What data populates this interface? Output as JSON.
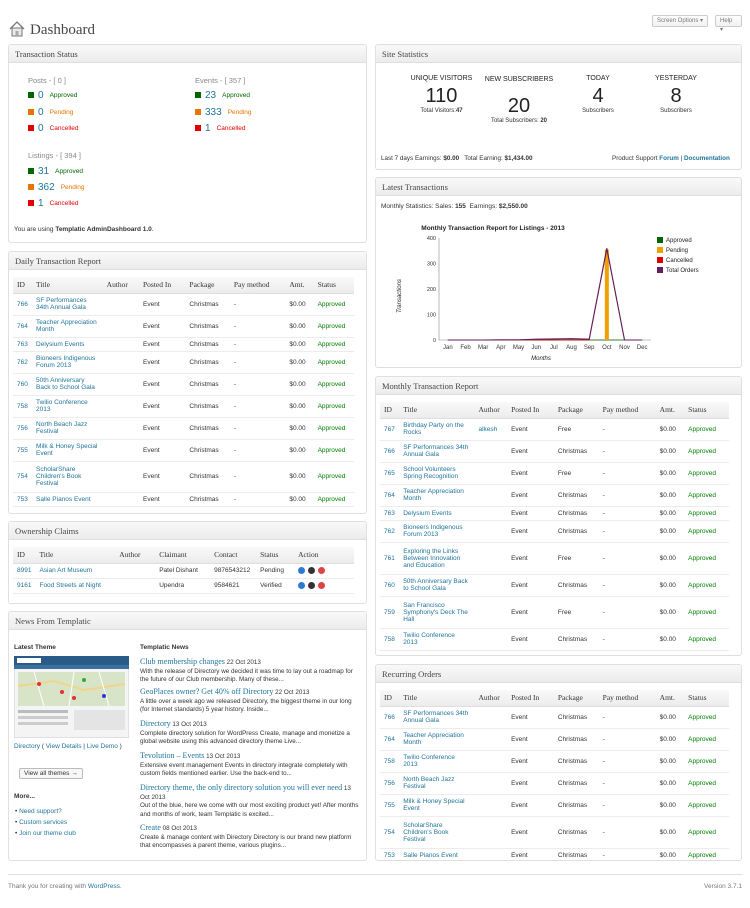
{
  "header": {
    "title": "Dashboard",
    "screen_options": "Screen Options",
    "help": "Help"
  },
  "transaction_status": {
    "title": "Transaction Status",
    "posts": {
      "label": "Posts - [ 0 ]",
      "approved": "0",
      "pending": "0",
      "cancelled": "0"
    },
    "events": {
      "label": "Events - [ 357 ]",
      "approved": "23",
      "pending": "333",
      "cancelled": "1"
    },
    "listings": {
      "label": "Listings - [ 394 ]",
      "approved": "31",
      "pending": "362",
      "cancelled": "1"
    },
    "labels": {
      "approved": "Approved",
      "pending": "Pending",
      "cancelled": "Cancelled"
    },
    "colors": {
      "approved": "#006600",
      "pending": "#e87400",
      "cancelled": "#e00000"
    },
    "using_prefix": "You are using ",
    "using_name": "Templatic AdminDashboard 1.0",
    "using_suffix": "."
  },
  "site_statistics": {
    "title": "Site Statistics",
    "cols": [
      {
        "label": "UNIQUE VISITORS",
        "value": "110",
        "sub_label": "Total Visitors:",
        "sub_value": "47"
      },
      {
        "label": "NEW SUBSCRIBERS",
        "value": "20",
        "sub_label": "Total Subscribers:",
        "sub_value": "20"
      },
      {
        "label": "TODAY",
        "value": "4",
        "sub_label": "Subscribers",
        "sub_value": ""
      },
      {
        "label": "YESTERDAY",
        "value": "8",
        "sub_label": "Subscribers",
        "sub_value": ""
      }
    ],
    "last7_label": "Last 7 days Earnings:",
    "last7_value": "$0.00",
    "total_label": "Total Earning:",
    "total_value": "$1,434.00",
    "support_label": "Product Support",
    "forum": "Forum",
    "sep": "|",
    "documentation": "Documentation"
  },
  "latest_transactions": {
    "title": "Latest Transactions",
    "monthly_stats_label": "Monthly Statistics: Sales:",
    "sales": "155",
    "earnings_label": "Earnings:",
    "earnings": "$2,550.00"
  },
  "chart_data": {
    "type": "line",
    "title": "Monthly Transaction Report for Listings - 2013",
    "xlabel": "Months",
    "ylabel": "Transactions",
    "categories": [
      "Jan",
      "Feb",
      "Mar",
      "Apr",
      "May",
      "Jun",
      "Jul",
      "Aug",
      "Sep",
      "Oct",
      "Nov",
      "Dec"
    ],
    "ylim": [
      0,
      400
    ],
    "yticks": [
      "0",
      "100",
      "200",
      "300",
      "400"
    ],
    "series": [
      {
        "name": "Approved",
        "color": "#006600",
        "values": [
          0,
          0,
          0,
          0,
          0,
          0,
          0,
          0,
          0,
          0,
          0,
          0
        ]
      },
      {
        "name": "Pending",
        "color": "#f0a000",
        "values": [
          0,
          0,
          0,
          0,
          0,
          0,
          0,
          0,
          0,
          355,
          0,
          0
        ]
      },
      {
        "name": "Cancelled",
        "color": "#dd0000",
        "values": [
          0,
          0,
          0,
          0,
          0,
          0,
          0,
          0,
          0,
          355,
          0,
          0
        ]
      },
      {
        "name": "Total Orders",
        "color": "#602060",
        "values": [
          0,
          0,
          0,
          1,
          1,
          3,
          4,
          5,
          3,
          360,
          0,
          0
        ]
      }
    ],
    "legend": "right"
  },
  "daily_report": {
    "title": "Daily Transaction Report",
    "headers": [
      "ID",
      "Title",
      "Author",
      "Posted In",
      "Package",
      "Pay method",
      "Amt.",
      "Status"
    ],
    "rows": [
      [
        "766",
        "SF Performances 34th Annual Gala",
        "",
        "Event",
        "Christmas",
        "-",
        "$0.00",
        "Approved"
      ],
      [
        "764",
        "Teacher Appreciation Month",
        "",
        "Event",
        "Christmas",
        "-",
        "$0.00",
        "Approved"
      ],
      [
        "763",
        "Delysium Events",
        "",
        "Event",
        "Christmas",
        "-",
        "$0.00",
        "Approved"
      ],
      [
        "762",
        "Bioneers Indigenous Forum 2013",
        "",
        "Event",
        "Christmas",
        "-",
        "$0.00",
        "Approved"
      ],
      [
        "760",
        "50th Anniversary Back to School Gala",
        "",
        "Event",
        "Christmas",
        "-",
        "$0.00",
        "Approved"
      ],
      [
        "758",
        "Twilio Conference 2013",
        "",
        "Event",
        "Christmas",
        "-",
        "$0.00",
        "Approved"
      ],
      [
        "756",
        "North Beach Jazz Festival",
        "",
        "Event",
        "Christmas",
        "-",
        "$0.00",
        "Approved"
      ],
      [
        "755",
        "Milk & Honey Special Event",
        "",
        "Event",
        "Christmas",
        "-",
        "$0.00",
        "Approved"
      ],
      [
        "754",
        "ScholarShare Children's Book Festival",
        "",
        "Event",
        "Christmas",
        "-",
        "$0.00",
        "Approved"
      ],
      [
        "753",
        "Salle Pianos Event",
        "",
        "Event",
        "Christmas",
        "-",
        "$0.00",
        "Approved"
      ]
    ]
  },
  "ownership": {
    "title": "Ownership Claims",
    "headers": [
      "ID",
      "Title",
      "Author",
      "Claimant",
      "Contact",
      "Status",
      "Action"
    ],
    "rows": [
      [
        "8991",
        "Asian Art Museum",
        "",
        "Patel Dishant",
        "9876543212",
        "Pending"
      ],
      [
        "9161",
        "Food Streets at Night",
        "",
        "Upendra",
        "9584621",
        "Verified"
      ]
    ]
  },
  "news": {
    "title": "News From Templatic",
    "latest_theme": "Latest Theme",
    "theme_name": "Directory",
    "view_details": "View Details",
    "live_demo": "Live Demo",
    "view_all": "View all themes →",
    "more": "More...",
    "more_links": [
      "Need support?",
      "Custom services",
      "Join our theme club"
    ],
    "templatic_news": "Templatic News",
    "items": [
      {
        "title": "Club membership changes",
        "date": "22 Oct 2013",
        "text": "With the release of Directory we decided it was time to lay out a roadmap for the future of our Club membership. Many of these..."
      },
      {
        "title": "GeoPlaces owner? Get 40% off Directory",
        "date": "22 Oct 2013",
        "text": "A little over a week ago we released Directory, the biggest theme in our long (for Internet standards) 5 year history. Inside..."
      },
      {
        "title": "Directory",
        "date": "13 Oct 2013",
        "text": "Complete directory solution for WordPress Create, manage and monetize a global website using this advanced directory theme Live..."
      },
      {
        "title": "Tevolution – Events",
        "date": "13 Oct 2013",
        "text": "Extensive event management Events in directory integrate completely with custom fields mentioned earlier. Use the back-end to..."
      },
      {
        "title": "Directory theme, the only directory solution you will ever need",
        "date": "13 Oct 2013",
        "text": "Out of the blue, here we come with our most exciting product yet! After months and months of work, team Templatic is excited..."
      },
      {
        "title": "Create",
        "date": "08 Oct 2013",
        "text": "Create & manage content with Directory Directory is our brand new platform that encompasses a parent theme, various plugins..."
      }
    ]
  },
  "monthly_report": {
    "title": "Monthly Transaction Report",
    "headers": [
      "ID",
      "Title",
      "Author",
      "Posted In",
      "Package",
      "Pay method",
      "Amt.",
      "Status"
    ],
    "rows": [
      [
        "767",
        "Birthday Party on the Rocks",
        "alkesh",
        "Event",
        "Free",
        "-",
        "$0.00",
        "Approved"
      ],
      [
        "766",
        "SF Performances 34th Annual Gala",
        "",
        "Event",
        "Christmas",
        "-",
        "$0.00",
        "Approved"
      ],
      [
        "765",
        "School Volunteers Spring Recognition",
        "",
        "Event",
        "Free",
        "-",
        "$0.00",
        "Approved"
      ],
      [
        "764",
        "Teacher Appreciation Month",
        "",
        "Event",
        "Christmas",
        "-",
        "$0.00",
        "Approved"
      ],
      [
        "763",
        "Delysium Events",
        "",
        "Event",
        "Christmas",
        "-",
        "$0.00",
        "Approved"
      ],
      [
        "762",
        "Bioneers Indigenous Forum 2013",
        "",
        "Event",
        "Christmas",
        "-",
        "$0.00",
        "Approved"
      ],
      [
        "761",
        "Exploring the Links Between Innovation and Education",
        "",
        "Event",
        "Free",
        "-",
        "$0.00",
        "Approved"
      ],
      [
        "760",
        "50th Anniversary Back to School Gala",
        "",
        "Event",
        "Christmas",
        "-",
        "$0.00",
        "Approved"
      ],
      [
        "759",
        "San Francisco Symphony's Deck The Hall",
        "",
        "Event",
        "Free",
        "-",
        "$0.00",
        "Approved"
      ],
      [
        "758",
        "Twilio Conference 2013",
        "",
        "Event",
        "Christmas",
        "-",
        "$0.00",
        "Approved"
      ]
    ]
  },
  "recurring": {
    "title": "Recurring Orders",
    "headers": [
      "ID",
      "Title",
      "Author",
      "Posted In",
      "Package",
      "Pay method",
      "Amt.",
      "Status"
    ],
    "rows": [
      [
        "766",
        "SF Performances 34th Annual Gala",
        "",
        "Event",
        "Christmas",
        "-",
        "$0.00",
        "Approved"
      ],
      [
        "764",
        "Teacher Appreciation Month",
        "",
        "Event",
        "Christmas",
        "-",
        "$0.00",
        "Approved"
      ],
      [
        "758",
        "Twilio Conference 2013",
        "",
        "Event",
        "Christmas",
        "-",
        "$0.00",
        "Approved"
      ],
      [
        "756",
        "North Beach Jazz Festival",
        "",
        "Event",
        "Christmas",
        "-",
        "$0.00",
        "Approved"
      ],
      [
        "755",
        "Milk & Honey Special Event",
        "",
        "Event",
        "Christmas",
        "-",
        "$0.00",
        "Approved"
      ],
      [
        "754",
        "ScholarShare Children's Book Festival",
        "",
        "Event",
        "Christmas",
        "-",
        "$0.00",
        "Approved"
      ],
      [
        "753",
        "Salle Pianos Event",
        "",
        "Event",
        "Christmas",
        "-",
        "$0.00",
        "Approved"
      ]
    ]
  },
  "footer": {
    "thanks_prefix": "Thank you for creating with ",
    "wordpress": "WordPress",
    "thanks_suffix": ".",
    "version": "Version 3.7.1"
  }
}
